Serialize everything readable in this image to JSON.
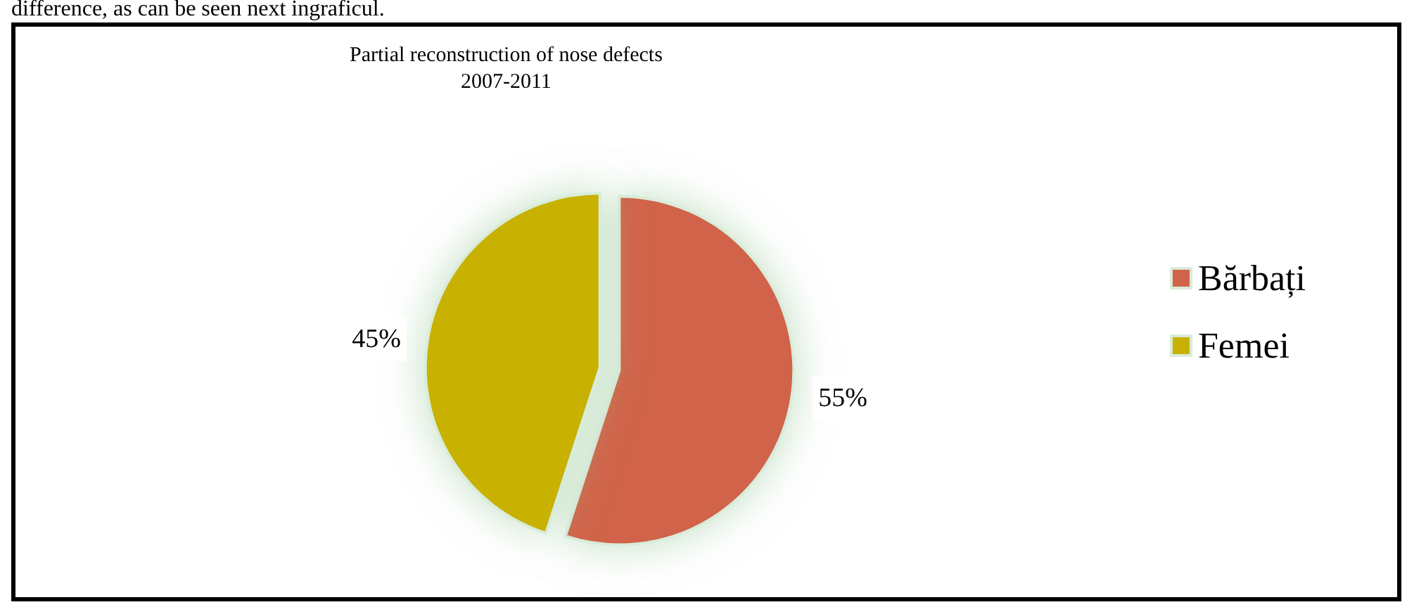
{
  "chart_data": {
    "type": "pie",
    "title": "Partial reconstruction of nose defects",
    "subtitle": "2007-2011",
    "annotations": [
      "difference, as can be seen next ingraficul."
    ],
    "categories": [
      "Bărbați",
      "Femei"
    ],
    "values": [
      55,
      45
    ],
    "colors": [
      "#d0634a",
      "#c8b100"
    ],
    "value_labels": [
      "55%",
      "45%"
    ],
    "legend": "right"
  }
}
